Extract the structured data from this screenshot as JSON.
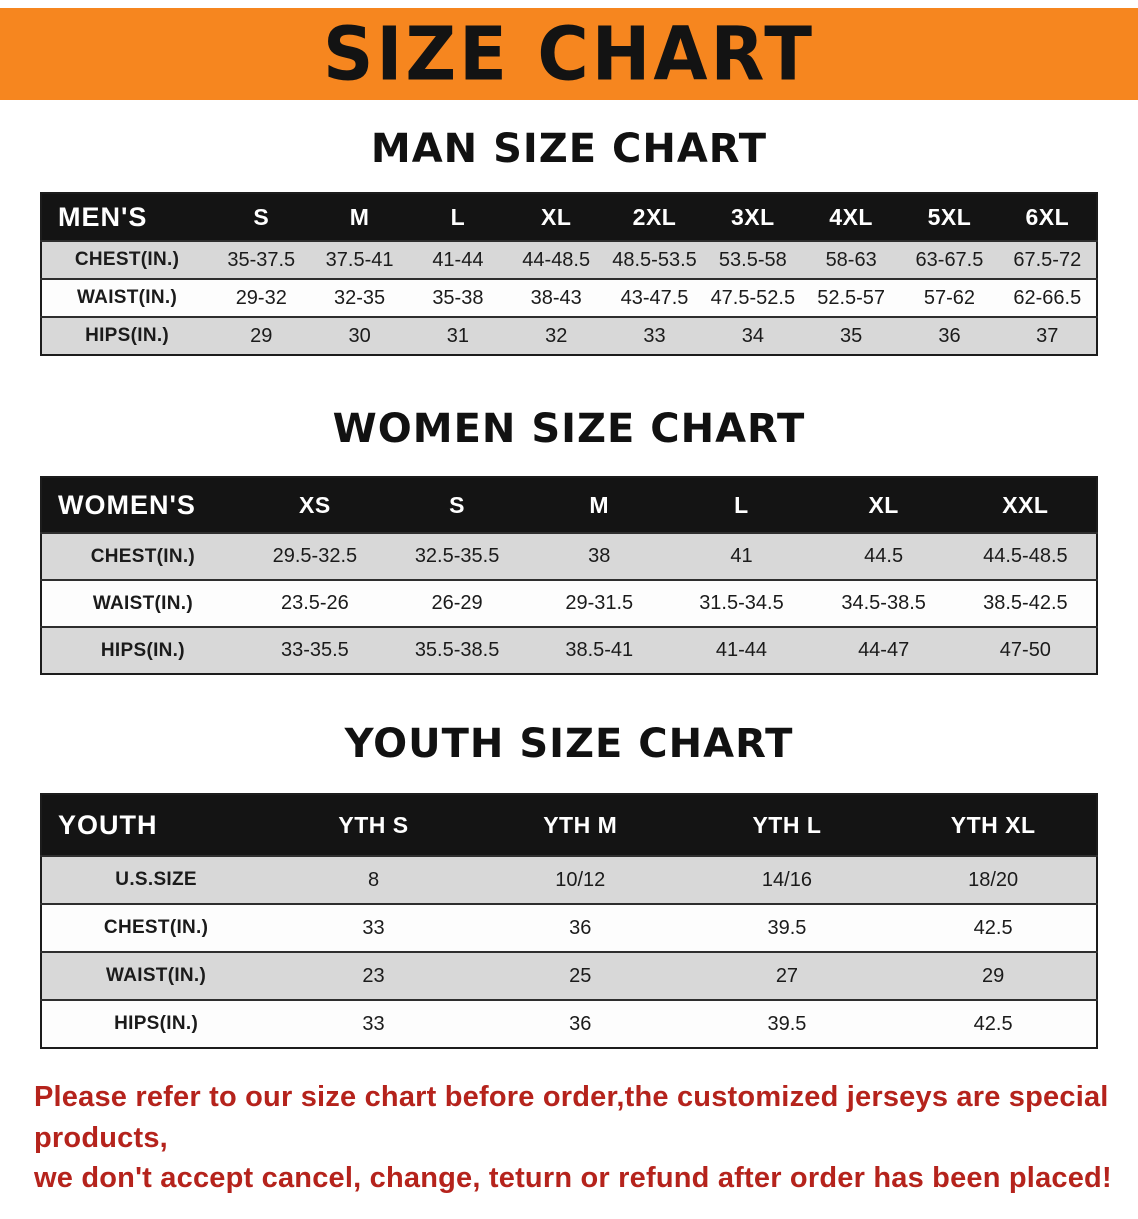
{
  "banner": {
    "title": "SIZE CHART"
  },
  "colors": {
    "banner_bg": "#f6861f",
    "table_header_bg": "#141414",
    "row_stripe_gray": "#d8d8d8",
    "note_red": "#b5231c"
  },
  "sections": [
    {
      "id": "men",
      "heading": "MAN SIZE CHART",
      "table": {
        "header": [
          "MEN'S",
          "S",
          "M",
          "L",
          "XL",
          "2XL",
          "3XL",
          "4XL",
          "5XL",
          "6XL"
        ],
        "rows": [
          {
            "label": "CHEST(IN.)",
            "values": [
              "35-37.5",
              "37.5-41",
              "41-44",
              "44-48.5",
              "48.5-53.5",
              "53.5-58",
              "58-63",
              "63-67.5",
              "67.5-72"
            ]
          },
          {
            "label": "WAIST(IN.)",
            "values": [
              "29-32",
              "32-35",
              "35-38",
              "38-43",
              "43-47.5",
              "47.5-52.5",
              "52.5-57",
              "57-62",
              "62-66.5"
            ]
          },
          {
            "label": "HIPS(IN.)",
            "values": [
              "29",
              "30",
              "31",
              "32",
              "33",
              "34",
              "35",
              "36",
              "37"
            ]
          }
        ]
      }
    },
    {
      "id": "women",
      "heading": "WOMEN SIZE CHART",
      "table": {
        "header": [
          "WOMEN'S",
          "XS",
          "S",
          "M",
          "L",
          "XL",
          "XXL"
        ],
        "rows": [
          {
            "label": "CHEST(IN.)",
            "values": [
              "29.5-32.5",
              "32.5-35.5",
              "38",
              "41",
              "44.5",
              "44.5-48.5"
            ]
          },
          {
            "label": "WAIST(IN.)",
            "values": [
              "23.5-26",
              "26-29",
              "29-31.5",
              "31.5-34.5",
              "34.5-38.5",
              "38.5-42.5"
            ]
          },
          {
            "label": "HIPS(IN.)",
            "values": [
              "33-35.5",
              "35.5-38.5",
              "38.5-41",
              "41-44",
              "44-47",
              "47-50"
            ]
          }
        ]
      }
    },
    {
      "id": "youth",
      "heading": "YOUTH SIZE CHART",
      "table": {
        "header": [
          "YOUTH",
          "YTH S",
          "YTH M",
          "YTH L",
          "YTH XL"
        ],
        "rows": [
          {
            "label": "U.S.SIZE",
            "values": [
              "8",
              "10/12",
              "14/16",
              "18/20"
            ]
          },
          {
            "label": "CHEST(IN.)",
            "values": [
              "33",
              "36",
              "39.5",
              "42.5"
            ]
          },
          {
            "label": "WAIST(IN.)",
            "values": [
              "23",
              "25",
              "27",
              "29"
            ]
          },
          {
            "label": "HIPS(IN.)",
            "values": [
              "33",
              "36",
              "39.5",
              "42.5"
            ]
          }
        ]
      }
    }
  ],
  "footer": {
    "line1": "Please refer to our size chart before order,the customized jerseys are special products,",
    "line2": "we don't accept cancel, change, teturn or refund after order has been placed!"
  }
}
